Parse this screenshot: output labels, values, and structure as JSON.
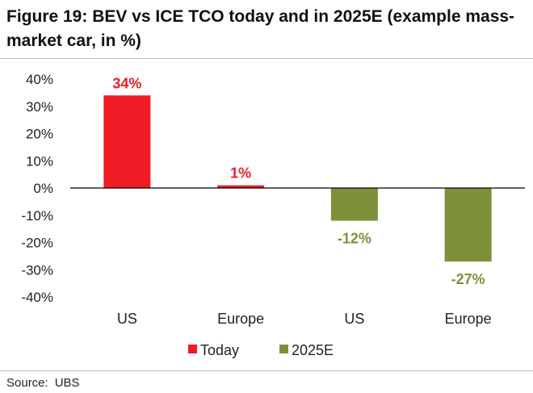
{
  "title": "Figure 19: BEV vs ICE TCO today and in 2025E (example mass-market car, in %)",
  "source": {
    "label": "Source:",
    "value": "UBS"
  },
  "colors": {
    "today": "#ee1c25",
    "e2025": "#7d913a",
    "axis": "#000000",
    "text": "#222222"
  },
  "chart_data": {
    "type": "bar",
    "title": "",
    "xlabel": "",
    "ylabel": "",
    "ylim": [
      -40,
      40
    ],
    "yticks": [
      40,
      30,
      20,
      10,
      0,
      -10,
      -20,
      -30,
      -40
    ],
    "ytick_labels": [
      "40%",
      "30%",
      "20%",
      "10%",
      "0%",
      "-10%",
      "-20%",
      "-30%",
      "-40%"
    ],
    "categories": [
      "US",
      "Europe",
      "US",
      "Europe"
    ],
    "series": [
      {
        "name": "Today",
        "color": "#ee1c25",
        "values": [
          34,
          1,
          null,
          null
        ],
        "labels": [
          "34%",
          "1%",
          "",
          ""
        ]
      },
      {
        "name": "2025E",
        "color": "#7d913a",
        "values": [
          null,
          null,
          -12,
          -27
        ],
        "labels": [
          "",
          "",
          "-12%",
          "-27%"
        ]
      }
    ],
    "grid": false,
    "legend": "bottom"
  }
}
